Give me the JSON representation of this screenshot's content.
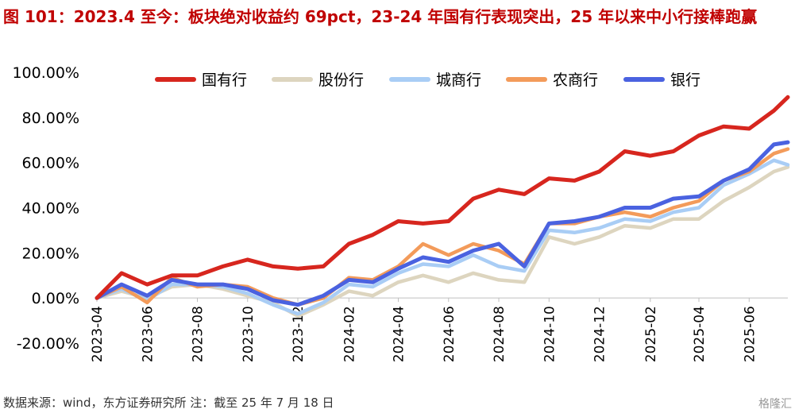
{
  "title": "图 101：2023.4 至今：板块绝对收益约 69pct，23-24 年国有行表现突出，25 年以来中小行接棒跑赢",
  "source": "数据来源：wind，东方证券研究所 注：截至 25 年 7 月 18 日",
  "watermark": "格隆汇",
  "chart_data": {
    "type": "line",
    "ylabel": "",
    "xlabel": "",
    "ylim": [
      -20,
      100
    ],
    "yticks": [
      "100.00%",
      "80.00%",
      "60.00%",
      "40.00%",
      "20.00%",
      "0.00%",
      "-20.00%"
    ],
    "xticks": [
      "2023-04",
      "2023-06",
      "2023-08",
      "2023-10",
      "2023-12",
      "2024-02",
      "2024-04",
      "2024-06",
      "2024-08",
      "2024-10",
      "2024-12",
      "2025-02",
      "2025-04",
      "2025-06"
    ],
    "legend_position": "top",
    "x": [
      "2023-04-01",
      "2023-05-01",
      "2023-06-01",
      "2023-07-01",
      "2023-08-01",
      "2023-09-01",
      "2023-10-01",
      "2023-11-01",
      "2023-12-01",
      "2024-01-01",
      "2024-02-01",
      "2024-03-01",
      "2024-04-01",
      "2024-05-01",
      "2024-06-01",
      "2024-07-01",
      "2024-08-01",
      "2024-09-01",
      "2024-10-01",
      "2024-11-01",
      "2024-12-01",
      "2025-01-01",
      "2025-02-01",
      "2025-03-01",
      "2025-04-01",
      "2025-05-01",
      "2025-06-01",
      "2025-07-01",
      "2025-07-18"
    ],
    "series": [
      {
        "name": "国有行",
        "color": "#d7261e",
        "values": [
          0,
          11,
          6,
          10,
          10,
          14,
          17,
          14,
          13,
          14,
          24,
          28,
          34,
          33,
          34,
          44,
          48,
          46,
          53,
          52,
          56,
          65,
          63,
          65,
          72,
          76,
          75,
          83,
          89
        ]
      },
      {
        "name": "股份行",
        "color": "#ddd5bf",
        "values": [
          0,
          3,
          0,
          5,
          6,
          4,
          1,
          -2,
          -8,
          -3,
          3,
          1,
          7,
          10,
          7,
          11,
          8,
          7,
          27,
          24,
          27,
          32,
          31,
          35,
          35,
          43,
          49,
          56,
          58
        ]
      },
      {
        "name": "城商行",
        "color": "#a9cdf5",
        "values": [
          0,
          4,
          -1,
          6,
          6,
          5,
          2,
          -3,
          -7,
          -2,
          6,
          5,
          11,
          15,
          14,
          19,
          14,
          12,
          30,
          29,
          31,
          35,
          34,
          38,
          40,
          50,
          55,
          61,
          59
        ]
      },
      {
        "name": "农商行",
        "color": "#f39b5a",
        "values": [
          0,
          5,
          -2,
          9,
          5,
          6,
          5,
          0,
          -3,
          0,
          9,
          8,
          14,
          24,
          19,
          24,
          21,
          15,
          33,
          33,
          36,
          38,
          36,
          40,
          43,
          52,
          56,
          64,
          66
        ]
      },
      {
        "name": "银行",
        "color": "#4a62e0",
        "values": [
          0,
          6,
          1,
          8,
          6,
          6,
          4,
          -1,
          -3,
          1,
          8,
          7,
          13,
          18,
          16,
          21,
          24,
          14,
          33,
          34,
          36,
          40,
          40,
          44,
          45,
          52,
          57,
          68,
          69
        ]
      }
    ]
  }
}
